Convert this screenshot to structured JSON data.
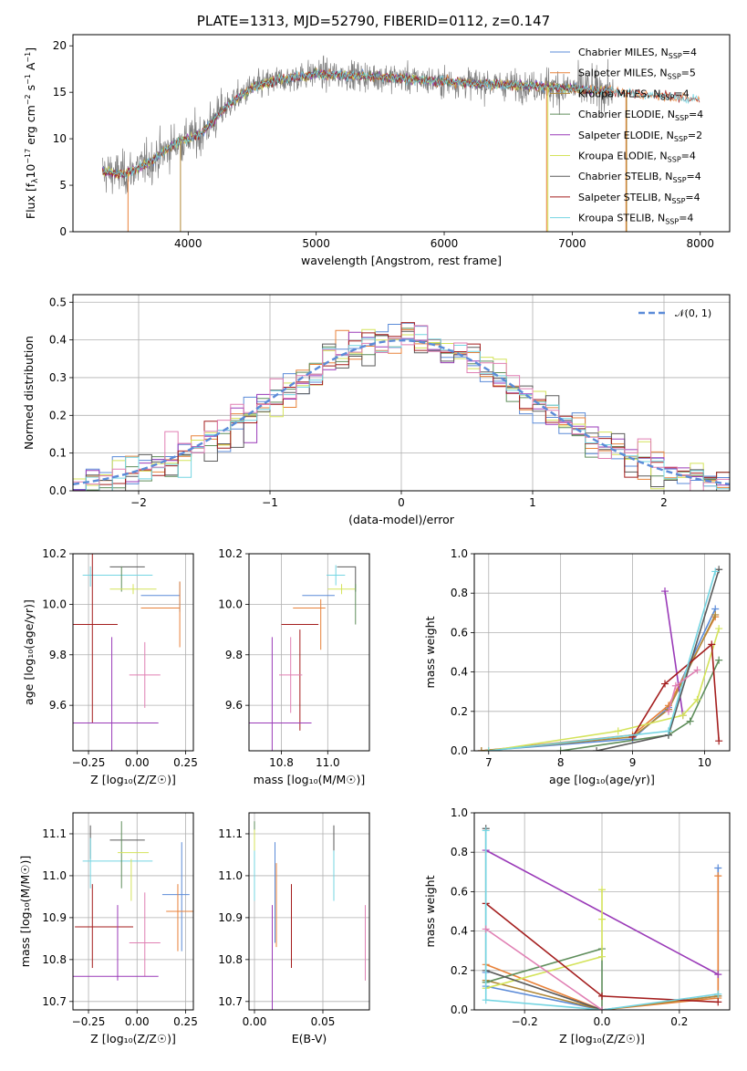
{
  "colors": [
    "#5b8bd8",
    "#e8823a",
    "#b08838",
    "#5f8e5b",
    "#9a3ab8",
    "#d4e35a",
    "#5a5a5a",
    "#a41e1e",
    "#74d5e2",
    "#e07fb3",
    "#999999"
  ],
  "chart_data": [
    {
      "id": "spectrum",
      "type": "line",
      "title": "PLATE=1313, MJD=52790, FIBERID=0112, z=0.147",
      "xlabel": "wavelength [Angstrom, rest frame]",
      "ylabel": "Flux [f",
      "ylabel_parts": [
        "Flux [f",
        "λ",
        "10",
        "−17",
        " erg cm",
        "−2",
        " s",
        "−1",
        " A",
        "−1",
        "]"
      ],
      "xlim": [
        3100,
        8230
      ],
      "ylim": [
        0,
        21.2
      ],
      "xticks": [
        4000,
        5000,
        6000,
        7000,
        8000
      ],
      "xtick_labels": [
        "4000",
        "5000",
        "6000",
        "7000",
        "8000"
      ],
      "yticks": [
        0,
        5,
        10,
        15,
        20
      ],
      "ytick_labels": [
        "0",
        "5",
        "10",
        "15",
        "20"
      ],
      "legend": "top-right",
      "series": [
        {
          "name": "Chabrier MILES, N",
          "sub": "SSP",
          "suffix": "=4",
          "color": 0
        },
        {
          "name": "Salpeter MILES, N",
          "sub": "SSP",
          "suffix": "=5",
          "color": 1
        },
        {
          "name": "Kroupa MILES, N",
          "sub": "SSP",
          "suffix": "=4",
          "color": 2
        },
        {
          "name": "Chabrier ELODIE, N",
          "sub": "SSP",
          "suffix": "=4",
          "color": 3
        },
        {
          "name": "Salpeter ELODIE, N",
          "sub": "SSP",
          "suffix": "=2",
          "color": 4
        },
        {
          "name": "Kroupa ELODIE, N",
          "sub": "SSP",
          "suffix": "=4",
          "color": 5
        },
        {
          "name": "Chabrier STELIB, N",
          "sub": "SSP",
          "suffix": "=4",
          "color": 6
        },
        {
          "name": "Salpeter STELIB, N",
          "sub": "SSP",
          "suffix": "=4",
          "color": 7
        },
        {
          "name": "Kroupa STELIB, N",
          "sub": "SSP",
          "suffix": "=4",
          "color": 8
        }
      ],
      "continuum": {
        "x": [
          3300,
          3500,
          3700,
          3900,
          4100,
          4300,
          4500,
          4700,
          5000,
          5300,
          5600,
          5900,
          6200,
          6500,
          6800,
          7100,
          7400,
          7700,
          8000
        ],
        "y": [
          6.5,
          6.2,
          7.5,
          9.5,
          10.5,
          13.5,
          15.5,
          16.3,
          17.0,
          16.8,
          16.6,
          16.2,
          16.0,
          15.8,
          15.6,
          15.3,
          15.0,
          14.6,
          14.2
        ]
      },
      "edges": [
        {
          "x": 3530,
          "color": 1
        },
        {
          "x": 3940,
          "color": 2
        },
        {
          "x": 6800,
          "color": 1
        },
        {
          "x": 6810,
          "color": 5
        },
        {
          "x": 7420,
          "color": 1
        },
        {
          "x": 7425,
          "color": 2
        }
      ]
    },
    {
      "id": "residuals",
      "type": "histogram",
      "xlabel": "(data-model)/error",
      "ylabel": "Normed distribution",
      "xlim": [
        -2.5,
        2.5
      ],
      "ylim": [
        0,
        0.52
      ],
      "xticks": [
        -2,
        -1,
        0,
        1,
        2
      ],
      "xtick_labels": [
        "−2",
        "−1",
        "0",
        "1",
        "2"
      ],
      "yticks": [
        0.0,
        0.1,
        0.2,
        0.3,
        0.4,
        0.5
      ],
      "ytick_labels": [
        "0.0",
        "0.1",
        "0.2",
        "0.3",
        "0.4",
        "0.5"
      ],
      "grid": true,
      "legend": "top-right",
      "legend_label": "𝒩(0, 1)",
      "bin_width": 0.1,
      "n_series": 9
    },
    {
      "id": "age-vs-Z",
      "type": "errorbar",
      "xlabel": "Z [log₁₀(Z/Z☉)]",
      "ylabel": "age  [log₁₀(age/yr)]",
      "xlim": [
        -0.33,
        0.29
      ],
      "ylim": [
        9.42,
        10.2
      ],
      "xticks": [
        -0.25,
        0.0,
        0.25
      ],
      "xtick_labels": [
        "−0.25",
        "0.00",
        "0.25"
      ],
      "yticks": [
        9.6,
        9.8,
        10.0,
        10.2
      ],
      "ytick_labels": [
        "9.6",
        "9.8",
        "10.0",
        "10.2"
      ],
      "grid": true,
      "points": [
        {
          "x": -0.05,
          "xerr": 0.09,
          "y": 10.148,
          "yerr": 0.0,
          "color": 6
        },
        {
          "x": -0.1,
          "xerr": 0.18,
          "y": 10.115,
          "yerr": 0.0,
          "color": 8
        },
        {
          "x": -0.24,
          "xerr": 0.0,
          "y": 10.11,
          "yerr": 0.04,
          "color": 8
        },
        {
          "x": -0.08,
          "xerr": 0.0,
          "y": 10.1,
          "yerr": 0.05,
          "color": 3
        },
        {
          "x": -0.02,
          "xerr": 0.12,
          "y": 10.06,
          "yerr": 0.02,
          "color": 5
        },
        {
          "x": 0.12,
          "xerr": 0.1,
          "y": 10.035,
          "yerr": 0.0,
          "color": 0
        },
        {
          "x": 0.12,
          "xerr": 0.1,
          "y": 9.985,
          "yerr": 0.0,
          "color": 1
        },
        {
          "x": 0.22,
          "xerr": 0.0,
          "y": 10.03,
          "yerr": 0.06,
          "color": 0
        },
        {
          "x": 0.22,
          "xerr": 0.0,
          "y": 9.96,
          "yerr": 0.13,
          "color": 1
        },
        {
          "x": -0.23,
          "xerr": 0.13,
          "y": 9.92,
          "yerr": 0.39,
          "color": 7
        },
        {
          "x": 0.04,
          "xerr": 0.08,
          "y": 9.72,
          "yerr": 0.13,
          "color": 9
        },
        {
          "x": -0.13,
          "xerr": 0.24,
          "y": 9.53,
          "yerr": 0.34,
          "color": 4
        }
      ]
    },
    {
      "id": "age-vs-mass",
      "type": "errorbar",
      "xlabel": "mass [log₁₀(M/M☉)]",
      "ylabel": "",
      "xlim": [
        10.66,
        11.18
      ],
      "ylim": [
        9.42,
        10.2
      ],
      "xticks": [
        10.8,
        11.0
      ],
      "xtick_labels": [
        "10.8",
        "11.0"
      ],
      "yticks": [
        9.6,
        9.8,
        10.0,
        10.2
      ],
      "ytick_labels": [
        "9.6",
        "9.8",
        "10.0",
        "10.2"
      ],
      "grid": true,
      "points": [
        {
          "x": 11.08,
          "xerr": 0.04,
          "y": 10.148,
          "yerr": 0.0,
          "color": 6
        },
        {
          "x": 11.12,
          "xerr": 0.0,
          "y": 10.1,
          "yerr": 0.05,
          "color": 6
        },
        {
          "x": 11.035,
          "xerr": 0.04,
          "y": 10.115,
          "yerr": 0.04,
          "color": 8
        },
        {
          "x": 11.06,
          "xerr": 0.06,
          "y": 10.06,
          "yerr": 0.02,
          "color": 5
        },
        {
          "x": 11.12,
          "xerr": 0.0,
          "y": 10.0,
          "yerr": 0.08,
          "color": 3
        },
        {
          "x": 10.96,
          "xerr": 0.07,
          "y": 10.035,
          "yerr": 0.0,
          "color": 0
        },
        {
          "x": 10.92,
          "xerr": 0.07,
          "y": 9.985,
          "yerr": 0.0,
          "color": 1
        },
        {
          "x": 10.97,
          "xerr": 0.0,
          "y": 9.92,
          "yerr": 0.1,
          "color": 1
        },
        {
          "x": 10.88,
          "xerr": 0.08,
          "y": 9.92,
          "yerr": 0.0,
          "color": 7
        },
        {
          "x": 10.88,
          "xerr": 0.0,
          "y": 9.7,
          "yerr": 0.2,
          "color": 7
        },
        {
          "x": 10.84,
          "xerr": 0.05,
          "y": 9.72,
          "yerr": 0.15,
          "color": 9
        },
        {
          "x": 10.76,
          "xerr": 0.17,
          "y": 9.53,
          "yerr": 0.34,
          "color": 4
        }
      ]
    },
    {
      "id": "weight-vs-age",
      "type": "line",
      "xlabel": "age  [log₁₀(age/yr)]",
      "ylabel": "mass weight",
      "xlim": [
        6.8,
        10.35
      ],
      "ylim": [
        0,
        1.0
      ],
      "xticks": [
        7,
        8,
        9,
        10
      ],
      "xtick_labels": [
        "7",
        "8",
        "9",
        "10"
      ],
      "yticks": [
        0.0,
        0.2,
        0.4,
        0.6,
        0.8,
        1.0
      ],
      "ytick_labels": [
        "0.0",
        "0.2",
        "0.4",
        "0.6",
        "0.8",
        "1.0"
      ],
      "grid": true,
      "series": [
        {
          "color": 0,
          "x": [
            6.9,
            9.0,
            9.5,
            10.15
          ],
          "y": [
            0.0,
            0.06,
            0.22,
            0.72
          ]
        },
        {
          "color": 1,
          "x": [
            6.9,
            9.0,
            9.5,
            10.15
          ],
          "y": [
            0.0,
            0.08,
            0.23,
            0.68
          ]
        },
        {
          "color": 2,
          "x": [
            6.9,
            9.0,
            9.5,
            10.15
          ],
          "y": [
            0.0,
            0.07,
            0.21,
            0.69
          ]
        },
        {
          "color": 3,
          "x": [
            8.0,
            9.5,
            9.8,
            10.2
          ],
          "y": [
            0.0,
            0.08,
            0.15,
            0.46
          ]
        },
        {
          "color": 4,
          "x": [
            9.45,
            9.7
          ],
          "y": [
            0.81,
            0.18
          ]
        },
        {
          "color": 5,
          "x": [
            7.0,
            8.8,
            9.7,
            9.9,
            10.2
          ],
          "y": [
            0.0,
            0.1,
            0.18,
            0.26,
            0.62
          ]
        },
        {
          "color": 6,
          "x": [
            8.5,
            9.5,
            10.2
          ],
          "y": [
            0.0,
            0.08,
            0.92
          ]
        },
        {
          "color": 7,
          "x": [
            9.0,
            9.45,
            10.1,
            10.2
          ],
          "y": [
            0.07,
            0.34,
            0.54,
            0.05
          ]
        },
        {
          "color": 8,
          "x": [
            7.0,
            9.5,
            10.15
          ],
          "y": [
            0.0,
            0.1,
            0.91
          ]
        },
        {
          "color": 9,
          "x": [
            9.5,
            9.6,
            9.9
          ],
          "y": [
            0.2,
            0.33,
            0.41
          ]
        }
      ]
    },
    {
      "id": "mass-vs-Z",
      "type": "errorbar",
      "xlabel": "Z [log₁₀(Z/Z☉)]",
      "ylabel": "mass [log₁₀(M/M☉)]",
      "xlim": [
        -0.33,
        0.29
      ],
      "ylim": [
        10.68,
        11.15
      ],
      "xticks": [
        -0.25,
        0.0,
        0.25
      ],
      "xtick_labels": [
        "−0.25",
        "0.00",
        "0.25"
      ],
      "yticks": [
        10.7,
        10.8,
        10.9,
        11.0,
        11.1
      ],
      "ytick_labels": [
        "10.7",
        "10.8",
        "10.9",
        "11.0",
        "11.1"
      ],
      "grid": true,
      "points": [
        {
          "x": -0.05,
          "xerr": 0.09,
          "y": 11.085,
          "yerr": 0.0,
          "color": 6
        },
        {
          "x": -0.24,
          "xerr": 0.0,
          "y": 11.08,
          "yerr": 0.04,
          "color": 6
        },
        {
          "x": -0.1,
          "xerr": 0.18,
          "y": 11.035,
          "yerr": 0.0,
          "color": 8
        },
        {
          "x": -0.24,
          "xerr": 0.0,
          "y": 11.03,
          "yerr": 0.06,
          "color": 8
        },
        {
          "x": -0.08,
          "xerr": 0.0,
          "y": 11.05,
          "yerr": 0.08,
          "color": 3
        },
        {
          "x": -0.02,
          "xerr": 0.08,
          "y": 11.055,
          "yerr": 0.0,
          "color": 5
        },
        {
          "x": -0.03,
          "xerr": 0.0,
          "y": 10.99,
          "yerr": 0.05,
          "color": 5
        },
        {
          "x": 0.2,
          "xerr": 0.07,
          "y": 10.955,
          "yerr": 0.0,
          "color": 0
        },
        {
          "x": 0.23,
          "xerr": 0.0,
          "y": 10.95,
          "yerr": 0.13,
          "color": 0
        },
        {
          "x": 0.22,
          "xerr": 0.07,
          "y": 10.915,
          "yerr": 0.0,
          "color": 1
        },
        {
          "x": 0.21,
          "xerr": 0.0,
          "y": 10.9,
          "yerr": 0.08,
          "color": 1
        },
        {
          "x": -0.23,
          "xerr": 0.0,
          "y": 10.88,
          "yerr": 0.1,
          "color": 7
        },
        {
          "x": -0.17,
          "xerr": 0.15,
          "y": 10.878,
          "yerr": 0.0,
          "color": 7
        },
        {
          "x": 0.04,
          "xerr": 0.0,
          "y": 10.86,
          "yerr": 0.1,
          "color": 9
        },
        {
          "x": 0.04,
          "xerr": 0.08,
          "y": 10.84,
          "yerr": 0.0,
          "color": 9
        },
        {
          "x": -0.13,
          "xerr": 0.24,
          "y": 10.76,
          "yerr": 0.0,
          "color": 4
        },
        {
          "x": -0.1,
          "xerr": 0.0,
          "y": 10.84,
          "yerr": 0.09,
          "color": 4
        }
      ]
    },
    {
      "id": "mass-vs-ebv",
      "type": "errorbar",
      "xlabel": "E(B-V)",
      "ylabel": "",
      "xlim": [
        -0.004,
        0.084
      ],
      "ylim": [
        10.68,
        11.15
      ],
      "xticks": [
        0.0,
        0.05
      ],
      "xtick_labels": [
        "0.00",
        "0.05"
      ],
      "yticks": [
        10.7,
        10.8,
        10.9,
        11.0,
        11.1
      ],
      "ytick_labels": [
        "10.7",
        "10.8",
        "10.9",
        "11.0",
        "11.1"
      ],
      "grid": true,
      "points": [
        {
          "x": 0.0,
          "xerr": 0,
          "y": 11.06,
          "yerr": 0.07,
          "color": 3
        },
        {
          "x": 0.0,
          "xerr": 0,
          "y": 11.03,
          "yerr": 0.08,
          "color": 5
        },
        {
          "x": 0.0,
          "xerr": 0,
          "y": 11.0,
          "yerr": 0.06,
          "color": 8
        },
        {
          "x": 0.015,
          "xerr": 0,
          "y": 10.96,
          "yerr": 0.12,
          "color": 0
        },
        {
          "x": 0.016,
          "xerr": 0,
          "y": 10.93,
          "yerr": 0.1,
          "color": 1
        },
        {
          "x": 0.013,
          "xerr": 0,
          "y": 10.8,
          "yerr": 0.13,
          "color": 4
        },
        {
          "x": 0.027,
          "xerr": 0,
          "y": 10.88,
          "yerr": 0.1,
          "color": 7
        },
        {
          "x": 0.058,
          "xerr": 0,
          "y": 11.09,
          "yerr": 0.03,
          "color": 6
        },
        {
          "x": 0.058,
          "xerr": 0,
          "y": 11.0,
          "yerr": 0.06,
          "color": 8
        },
        {
          "x": 0.081,
          "xerr": 0,
          "y": 10.84,
          "yerr": 0.09,
          "color": 9
        }
      ]
    },
    {
      "id": "weight-vs-Z",
      "type": "line",
      "xlabel": "Z [log₁₀(Z/Z☉)]",
      "ylabel": "mass weight",
      "xlim": [
        -0.33,
        0.33
      ],
      "ylim": [
        0,
        1.0
      ],
      "xticks": [
        -0.2,
        0.0,
        0.2
      ],
      "xtick_labels": [
        "−0.2",
        "0.0",
        "0.2"
      ],
      "yticks": [
        0.0,
        0.2,
        0.4,
        0.6,
        0.8,
        1.0
      ],
      "ytick_labels": [
        "0.0",
        "0.2",
        "0.4",
        "0.6",
        "0.8",
        "1.0"
      ],
      "grid": true,
      "series": [
        {
          "color": 0,
          "x": [
            -0.3,
            -0.3,
            0.0,
            0.3,
            0.3
          ],
          "y": [
            0.19,
            0.12,
            0.0,
            0.07,
            0.72
          ]
        },
        {
          "color": 1,
          "x": [
            -0.3,
            0.0,
            0.3,
            0.3
          ],
          "y": [
            0.23,
            0.0,
            0.06,
            0.68
          ]
        },
        {
          "color": 2,
          "x": [
            -0.3,
            0.0,
            0.3
          ],
          "y": [
            0.15,
            0.0,
            0.07
          ]
        },
        {
          "color": 3,
          "x": [
            -0.3,
            0.0,
            0.0
          ],
          "y": [
            0.14,
            0.31,
            0.0
          ]
        },
        {
          "color": 4,
          "x": [
            -0.3,
            0.3
          ],
          "y": [
            0.81,
            0.18
          ]
        },
        {
          "color": 5,
          "x": [
            -0.3,
            0.0,
            0.0,
            0.0
          ],
          "y": [
            0.11,
            0.27,
            0.46,
            0.61
          ]
        },
        {
          "color": 6,
          "x": [
            -0.3,
            -0.3,
            0.0
          ],
          "y": [
            0.92,
            0.2,
            0.0
          ]
        },
        {
          "color": 7,
          "x": [
            -0.3,
            0.0,
            0.3
          ],
          "y": [
            0.54,
            0.07,
            0.04
          ]
        },
        {
          "color": 8,
          "x": [
            -0.3,
            -0.3,
            0.0,
            0.3
          ],
          "y": [
            0.91,
            0.05,
            0.0,
            0.08
          ]
        },
        {
          "color": 9,
          "x": [
            -0.3,
            0.0
          ],
          "y": [
            0.41,
            0.0
          ]
        }
      ]
    }
  ]
}
